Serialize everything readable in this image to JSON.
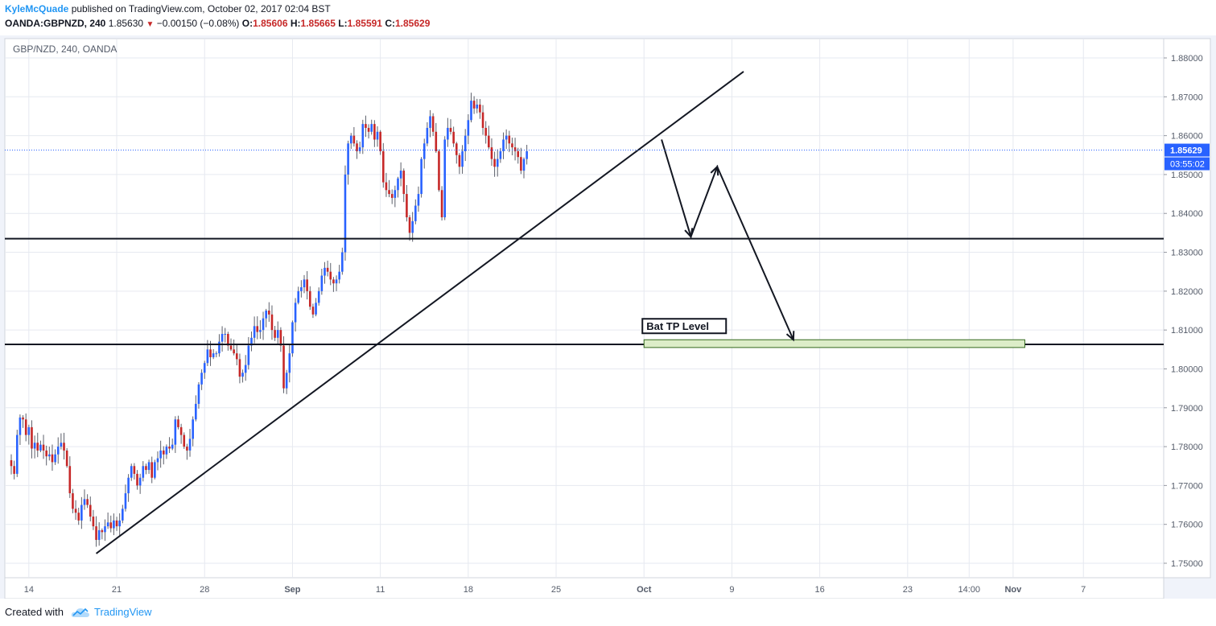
{
  "header": {
    "author": "KyleMcQuade",
    "published": "published on TradingView.com, October 02, 2017 02:04 BST",
    "symbol": "OANDA:GBPNZD, 240",
    "price": "1.85630",
    "change": "−0.00150 (−0.08%)",
    "o_label": "O:",
    "o": "1.85606",
    "h_label": "H:",
    "h": "1.85665",
    "l_label": "L:",
    "l": "1.85591",
    "c_label": "C:",
    "c": "1.85629",
    "down_arrow": "▼"
  },
  "footer": {
    "created_with": "Created with",
    "brand": "TradingView",
    "logo_icon": "tradingview-cloud-icon"
  },
  "colors": {
    "up": "#2962ff",
    "down": "#c62828",
    "accent": "#2196f3",
    "tp_fill": "#dcedc8",
    "tp_border": "#33691e",
    "line": "#131722",
    "grid": "#e6e9f0"
  },
  "chart_data": {
    "type": "candlestick",
    "title": "GBP/NZD, 240, OANDA",
    "xlabel": "",
    "ylabel": "",
    "ylim": [
      1.745,
      1.884
    ],
    "yticks": [
      "1.88000",
      "1.87000",
      "1.86000",
      "1.85000",
      "1.84000",
      "1.83000",
      "1.82000",
      "1.81000",
      "1.80000",
      "1.79000",
      "1.78000",
      "1.77000",
      "1.76000",
      "1.75000"
    ],
    "yticks_values": [
      1.88,
      1.87,
      1.86,
      1.85,
      1.84,
      1.83,
      1.82,
      1.81,
      1.8,
      1.79,
      1.78,
      1.77,
      1.76,
      1.75
    ],
    "xticks": [
      {
        "label": "14",
        "bar": 6,
        "bold": false
      },
      {
        "label": "21",
        "bar": 36,
        "bold": false
      },
      {
        "label": "28",
        "bar": 66,
        "bold": false
      },
      {
        "label": "Sep",
        "bar": 96,
        "bold": true
      },
      {
        "label": "11",
        "bar": 126,
        "bold": false
      },
      {
        "label": "18",
        "bar": 156,
        "bold": false
      },
      {
        "label": "25",
        "bar": 186,
        "bold": false
      },
      {
        "label": "Oct",
        "bar": 216,
        "bold": true
      },
      {
        "label": "9",
        "bar": 246,
        "bold": false
      },
      {
        "label": "16",
        "bar": 276,
        "bold": false
      },
      {
        "label": "23",
        "bar": 306,
        "bold": false
      },
      {
        "label": "14:00",
        "bar": 327,
        "bold": false
      },
      {
        "label": "Nov",
        "bar": 342,
        "bold": true
      },
      {
        "label": "7",
        "bar": 366,
        "bold": false
      }
    ],
    "last_price_label": "1.85629",
    "last_price": 1.85629,
    "countdown_label": "03:55:02",
    "closes": [
      1.775,
      1.773,
      1.783,
      1.7875,
      1.787,
      1.783,
      1.785,
      1.7795,
      1.781,
      1.779,
      1.7805,
      1.779,
      1.7775,
      1.778,
      1.776,
      1.778,
      1.78,
      1.781,
      1.779,
      1.775,
      1.768,
      1.764,
      1.763,
      1.761,
      1.765,
      1.7665,
      1.765,
      1.762,
      1.7595,
      1.756,
      1.7585,
      1.758,
      1.7595,
      1.7605,
      1.759,
      1.761,
      1.7595,
      1.761,
      1.764,
      1.768,
      1.772,
      1.775,
      1.773,
      1.77,
      1.772,
      1.775,
      1.774,
      1.776,
      1.772,
      1.776,
      1.777,
      1.779,
      1.778,
      1.78,
      1.7795,
      1.7805,
      1.787,
      1.785,
      1.783,
      1.78,
      1.779,
      1.782,
      1.787,
      1.791,
      1.796,
      1.799,
      1.8015,
      1.805,
      1.803,
      1.804,
      1.804,
      1.807,
      1.809,
      1.809,
      1.806,
      1.805,
      1.804,
      1.8025,
      1.798,
      1.799,
      1.801,
      1.806,
      1.808,
      1.811,
      1.8095,
      1.81,
      1.813,
      1.815,
      1.814,
      1.81,
      1.808,
      1.81,
      1.806,
      1.795,
      1.799,
      1.804,
      1.812,
      1.817,
      1.82,
      1.821,
      1.823,
      1.82,
      1.816,
      1.814,
      1.817,
      1.82,
      1.824,
      1.826,
      1.825,
      1.823,
      1.822,
      1.823,
      1.825,
      1.83,
      1.85,
      1.858,
      1.86,
      1.858,
      1.856,
      1.857,
      1.863,
      1.862,
      1.861,
      1.863,
      1.859,
      1.861,
      1.856,
      1.848,
      1.846,
      1.845,
      1.844,
      1.846,
      1.849,
      1.851,
      1.845,
      1.839,
      1.835,
      1.838,
      1.842,
      1.845,
      1.854,
      1.858,
      1.862,
      1.865,
      1.861,
      1.856,
      1.846,
      1.839,
      1.859,
      1.862,
      1.861,
      1.858,
      1.855,
      1.852,
      1.856,
      1.86,
      1.864,
      1.869,
      1.867,
      1.868,
      1.866,
      1.862,
      1.86,
      1.857,
      1.854,
      1.852,
      1.854,
      1.856,
      1.859,
      1.86,
      1.858,
      1.857,
      1.856,
      1.8545,
      1.851,
      1.854,
      1.856
    ],
    "drawings": {
      "trendline": {
        "x1": 29,
        "y1": 1.7525,
        "x2": 250,
        "y2": 1.8765
      },
      "horizontal_lines": [
        1.8335,
        1.8063
      ],
      "path": [
        {
          "x": 222,
          "y": 1.859
        },
        {
          "x": 232,
          "y": 1.834
        },
        {
          "x": 241,
          "y": 1.852
        },
        {
          "x": 267,
          "y": 1.8075
        }
      ],
      "tp_zone": {
        "x1": 216,
        "x2": 346,
        "y1": 1.8055,
        "y2": 1.8075,
        "label": "Bat TP Level"
      }
    }
  }
}
